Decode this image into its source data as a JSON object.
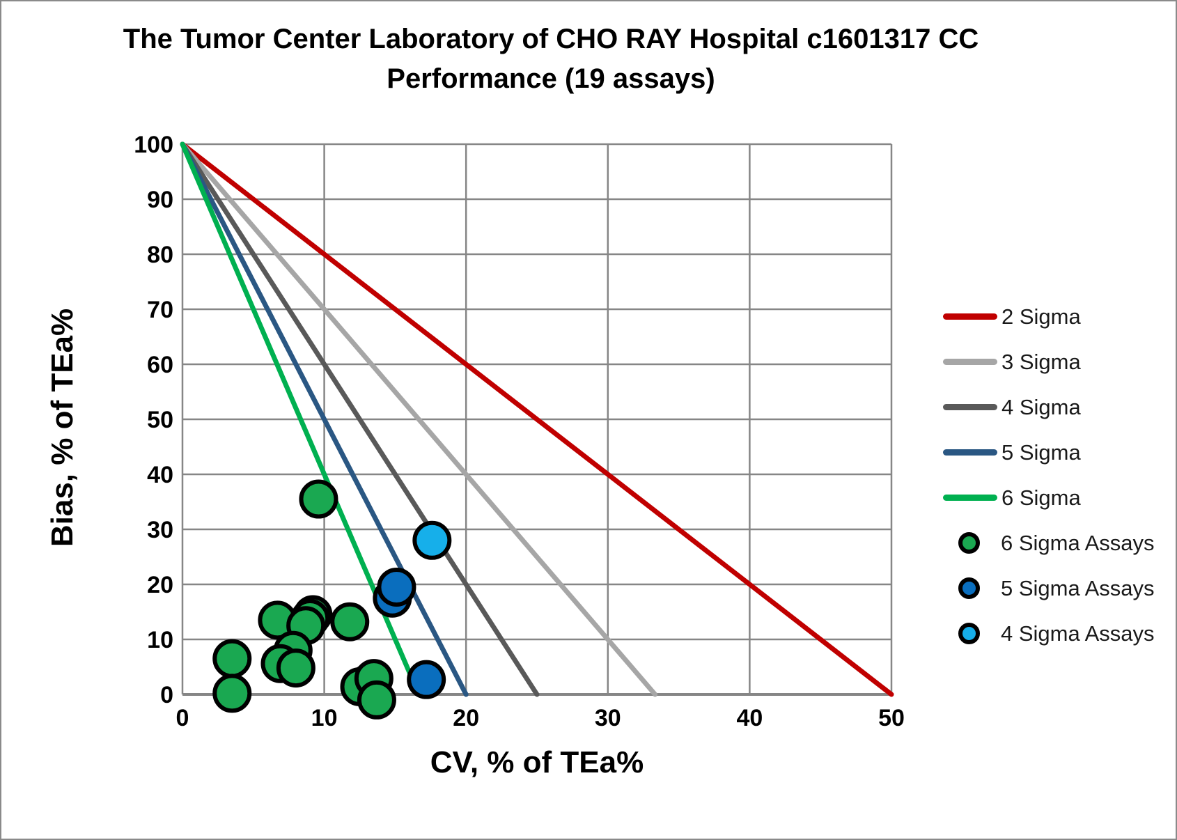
{
  "title": {
    "line1": "The Tumor Center Laboratory of CHO RAY Hospital c1601317 CC",
    "line2": "Performance (19 assays)"
  },
  "chart_data": {
    "type": "scatter",
    "title": "The Tumor Center Laboratory of CHO RAY Hospital c1601317 CC Performance (19 assays)",
    "xlabel": "CV, % of TEa%",
    "ylabel": "Bias, % of TEa%",
    "xlim": [
      0,
      50
    ],
    "ylim": [
      0,
      100
    ],
    "x_ticks": [
      0,
      10,
      20,
      30,
      40,
      50
    ],
    "y_ticks": [
      0,
      10,
      20,
      30,
      40,
      50,
      60,
      70,
      80,
      90,
      100
    ],
    "grid": true,
    "grid_color": "#868686",
    "legend_position": "right",
    "sigma_lines": [
      {
        "name": "2 Sigma",
        "color": "#C00000",
        "from": [
          0,
          100
        ],
        "to": [
          50,
          0
        ]
      },
      {
        "name": "3 Sigma",
        "color": "#A6A6A6",
        "from": [
          0,
          100
        ],
        "to": [
          33.33,
          0
        ]
      },
      {
        "name": "4 Sigma",
        "color": "#595959",
        "from": [
          0,
          100
        ],
        "to": [
          25,
          0
        ]
      },
      {
        "name": "5 Sigma",
        "color": "#2A5783",
        "from": [
          0,
          100
        ],
        "to": [
          20,
          0
        ]
      },
      {
        "name": "6 Sigma",
        "color": "#00B050",
        "from": [
          0,
          100
        ],
        "to": [
          16.67,
          0
        ]
      }
    ],
    "series": [
      {
        "name": "6 Sigma Assays",
        "color": "#1AA851",
        "points": [
          [
            9.6,
            35.5
          ],
          [
            9.2,
            14.5
          ],
          [
            9.0,
            13.8
          ],
          [
            6.7,
            13.5
          ],
          [
            8.7,
            12.5
          ],
          [
            11.8,
            13.2
          ],
          [
            7.8,
            8.0
          ],
          [
            3.5,
            6.5
          ],
          [
            6.9,
            5.6
          ],
          [
            8.0,
            4.8
          ],
          [
            3.5,
            0.2
          ],
          [
            13.2,
            2.2
          ],
          [
            12.5,
            1.4
          ],
          [
            13.5,
            2.9
          ],
          [
            13.7,
            -1.0
          ]
        ]
      },
      {
        "name": "5 Sigma Assays",
        "color": "#0A6EBE",
        "points": [
          [
            14.8,
            17.5
          ],
          [
            15.1,
            19.5
          ],
          [
            17.2,
            2.7
          ]
        ]
      },
      {
        "name": "4 Sigma Assays",
        "color": "#16AFEA",
        "points": [
          [
            17.6,
            28.0
          ]
        ]
      }
    ]
  },
  "legend": {
    "entries": [
      {
        "type": "line",
        "label": "2 Sigma",
        "color": "#C00000"
      },
      {
        "type": "line",
        "label": "3 Sigma",
        "color": "#A6A6A6"
      },
      {
        "type": "line",
        "label": "4 Sigma",
        "color": "#595959"
      },
      {
        "type": "line",
        "label": "5 Sigma",
        "color": "#2A5783"
      },
      {
        "type": "line",
        "label": "6 Sigma",
        "color": "#00B050"
      },
      {
        "type": "marker",
        "label": "6 Sigma Assays",
        "color": "#1AA851"
      },
      {
        "type": "marker",
        "label": "5 Sigma Assays",
        "color": "#0A6EBE"
      },
      {
        "type": "marker",
        "label": "4 Sigma Assays",
        "color": "#16AFEA"
      }
    ]
  }
}
